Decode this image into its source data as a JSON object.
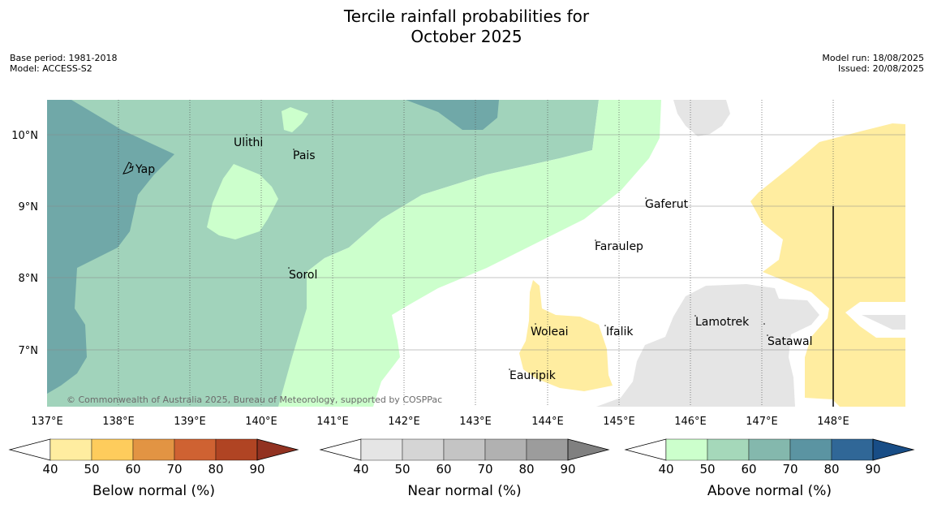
{
  "title_line1": "Tercile rainfall probabilities for",
  "title_line2": "October 2025",
  "meta_left": {
    "base_period": "Base period: 1981-2018",
    "model": "Model: ACCESS-S2"
  },
  "meta_right": {
    "model_run": "Model run: 18/08/2025",
    "issued": "Issued: 20/08/2025"
  },
  "map": {
    "lon_labels": [
      "137°E",
      "138°E",
      "139°E",
      "140°E",
      "141°E",
      "142°E",
      "143°E",
      "144°E",
      "145°E",
      "146°E",
      "147°E",
      "148°E"
    ],
    "lat_labels": [
      "10°N",
      "9°N",
      "8°N",
      "7°N"
    ],
    "places": [
      "Ulithi",
      "Pais",
      "Yap",
      "Gaferut",
      "Faraulep",
      "Sorol",
      "Lamotrek",
      "Woleai",
      "Ifalik",
      "Satawal",
      "Eauripik"
    ],
    "copyright": "© Commonwealth of Australia 2025, Bureau of Meteorology, supported by COSPPac",
    "colors": {
      "above_40_50": "#ccffcc",
      "above_50_60": "#a1d3bb",
      "above_60_70": "#70a8a8",
      "below_40_50": "#ffeda0",
      "near_40_50": "#e5e5e5",
      "no_signal": "#ffffff"
    }
  },
  "colorbars": [
    {
      "label": "Below normal (%)",
      "ticks": [
        "40",
        "50",
        "60",
        "70",
        "80",
        "90"
      ],
      "colors": [
        "#ffeda0",
        "#fecc5c",
        "#e29443",
        "#cf6232",
        "#b04423",
        "#923221"
      ]
    },
    {
      "label": "Near normal (%)",
      "ticks": [
        "40",
        "50",
        "60",
        "70",
        "80",
        "90"
      ],
      "colors": [
        "#e5e5e5",
        "#d5d5d5",
        "#c4c4c4",
        "#b1b1b1",
        "#9c9c9c",
        "#808080"
      ]
    },
    {
      "label": "Above normal (%)",
      "ticks": [
        "40",
        "50",
        "60",
        "70",
        "80",
        "90"
      ],
      "colors": [
        "#ccffcc",
        "#a5d8ba",
        "#84b8ad",
        "#5b94a2",
        "#306797",
        "#184d86"
      ]
    }
  ]
}
